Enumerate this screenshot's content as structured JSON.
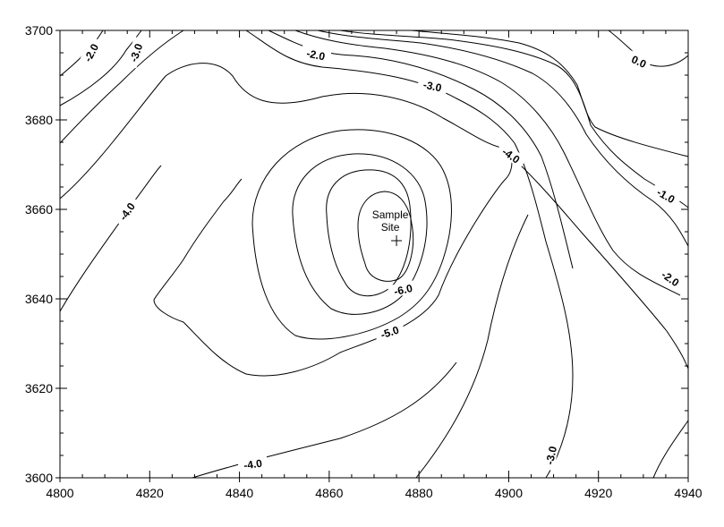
{
  "chart_data": {
    "type": "contour",
    "title": "",
    "xlabel": "",
    "ylabel": "",
    "xlim": [
      4800,
      4940
    ],
    "ylim": [
      3600,
      3700
    ],
    "x_ticks": [
      "4800",
      "4820",
      "4840",
      "4860",
      "4880",
      "4900",
      "4920",
      "4940"
    ],
    "y_ticks": [
      "3600",
      "3620",
      "3640",
      "3660",
      "3680",
      "3700"
    ],
    "contour_labels": [
      {
        "text": "-2.0",
        "x": 4807,
        "y": 3695,
        "angle": -62
      },
      {
        "text": "-3.0",
        "x": 4817,
        "y": 3695,
        "angle": -70
      },
      {
        "text": "-2.0",
        "x": 4857,
        "y": 3694.5,
        "angle": 12
      },
      {
        "text": "-3.0",
        "x": 4883,
        "y": 3687.5,
        "angle": 12
      },
      {
        "text": "-4.0",
        "x": 4900.5,
        "y": 3672,
        "angle": 35
      },
      {
        "text": "0.0",
        "x": 4929,
        "y": 3693,
        "angle": 25
      },
      {
        "text": "-1.0",
        "x": 4935,
        "y": 3663,
        "angle": 30
      },
      {
        "text": "-2.0",
        "x": 4936,
        "y": 3644.5,
        "angle": 35
      },
      {
        "text": "-4.0",
        "x": 4815,
        "y": 3659.5,
        "angle": -55
      },
      {
        "text": "-6.0",
        "x": 4876.5,
        "y": 3642,
        "angle": -12
      },
      {
        "text": "-5.0",
        "x": 4873.5,
        "y": 3632.5,
        "angle": -18
      },
      {
        "text": "-4.0",
        "x": 4843,
        "y": 3603,
        "angle": -8
      },
      {
        "text": "-3.0",
        "x": 4909.5,
        "y": 3605,
        "angle": -78
      }
    ],
    "marker": {
      "label_line1": "Sample",
      "label_line2": "Site",
      "x": 4875,
      "y": 3653,
      "symbol": "+"
    }
  }
}
